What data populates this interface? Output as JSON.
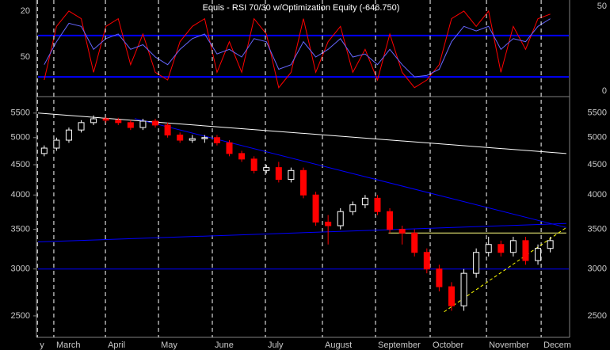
{
  "chart_data": [
    {
      "type": "line",
      "title": "Equis - RSI 70/30 w/Optimization Equity (-646.750)",
      "xlim": [
        -0.5,
        42.5
      ],
      "ylim": [
        74.8,
        12.8
      ],
      "yticks": [
        20,
        50
      ],
      "y2lim": [
        -2.3,
        53.7
      ],
      "y2ticks": [
        0,
        50
      ],
      "hlines": [
        36,
        63
      ],
      "hline_color": "#0000ff",
      "series": [
        {
          "color": "#ff0000",
          "values": [
            65,
            30,
            20,
            25,
            60,
            30,
            25,
            55,
            35,
            60,
            65,
            40,
            30,
            25,
            60,
            40,
            60,
            25,
            35,
            70,
            60,
            25,
            60,
            40,
            30,
            60,
            45,
            65,
            35,
            60,
            70,
            65,
            55,
            25,
            20,
            30,
            20,
            60,
            30,
            45,
            25,
            22
          ]
        },
        {
          "color": "#6666ff",
          "values": [
            55,
            40,
            28,
            30,
            45,
            38,
            35,
            45,
            42,
            50,
            55,
            45,
            38,
            35,
            48,
            45,
            50,
            38,
            40,
            58,
            55,
            40,
            50,
            45,
            38,
            50,
            48,
            55,
            45,
            55,
            63,
            62,
            58,
            40,
            30,
            33,
            30,
            45,
            38,
            40,
            30,
            25
          ]
        }
      ]
    },
    {
      "type": "candlestick",
      "xlim": [
        -0.5,
        42.5
      ],
      "xticks": [
        {
          "value": -0.55,
          "label": "y"
        },
        {
          "value": 0.78,
          "label": "March"
        },
        {
          "value": 4.96,
          "label": "April"
        },
        {
          "value": 9.26,
          "label": "May"
        },
        {
          "value": 13.62,
          "label": "June"
        },
        {
          "value": 17.92,
          "label": "July"
        },
        {
          "value": 22.54,
          "label": "August"
        },
        {
          "value": 26.84,
          "label": "September"
        },
        {
          "value": 31.27,
          "label": "October"
        },
        {
          "value": 35.83,
          "label": "November"
        },
        {
          "value": 40.26,
          "label": "Decem"
        }
      ],
      "ylim": [
        2300,
        5810
      ],
      "log_scale": true,
      "yticks": [
        2500,
        3000,
        3500,
        4000,
        4500,
        5000,
        5500
      ],
      "up_color": "#ffffff",
      "down_color": "#ff0000",
      "open": [
        4700,
        4800,
        4950,
        5150,
        5300,
        5380,
        5350,
        5300,
        5200,
        5330,
        5250,
        5050,
        4950,
        4980,
        5000,
        4900,
        4700,
        4600,
        4400,
        4450,
        4250,
        4400,
        4000,
        3600,
        3550,
        3750,
        3850,
        3950,
        3750,
        3500,
        3450,
        3200,
        3000,
        2800,
        2600,
        2950,
        3200,
        3300,
        3200,
        3350,
        3100,
        3250
      ],
      "high": [
        4850,
        5000,
        5200,
        5350,
        5450,
        5420,
        5400,
        5350,
        5380,
        5380,
        5300,
        5100,
        5050,
        5050,
        5050,
        4950,
        4750,
        4650,
        4500,
        4550,
        4450,
        4450,
        4050,
        3700,
        3800,
        3900,
        4000,
        4000,
        3800,
        3550,
        3500,
        3250,
        3050,
        2850,
        3000,
        3250,
        3400,
        3350,
        3400,
        3400,
        3300,
        3400
      ],
      "low": [
        4650,
        4750,
        4900,
        5100,
        5250,
        5300,
        5250,
        5150,
        5150,
        5200,
        5000,
        4900,
        4900,
        4900,
        4850,
        4650,
        4550,
        4350,
        4350,
        4200,
        4200,
        3950,
        3550,
        3300,
        3500,
        3700,
        3800,
        3700,
        3450,
        3300,
        3150,
        2950,
        2750,
        2550,
        2550,
        2900,
        3150,
        3150,
        3150,
        3050,
        3050,
        3200
      ],
      "close": [
        4800,
        4950,
        5150,
        5300,
        5380,
        5350,
        5300,
        5200,
        5330,
        5250,
        5050,
        4950,
        4980,
        5000,
        4900,
        4700,
        4600,
        4400,
        4450,
        4250,
        4400,
        4000,
        3600,
        3550,
        3750,
        3850,
        3950,
        3750,
        3500,
        3450,
        3200,
        3000,
        2800,
        2600,
        2950,
        3200,
        3300,
        3200,
        3350,
        3100,
        3250,
        3350
      ],
      "hlines": [
        3000
      ],
      "hline_color": "#0000ff",
      "lines": [
        {
          "x": [
            -0.5,
            42.3
          ],
          "y": [
            5500,
            4700
          ],
          "color": "#ffffff",
          "dashed": false
        },
        {
          "x": [
            7.33,
            42.3
          ],
          "y": [
            5385,
            3525
          ],
          "color": "#0000ff",
          "dashed": false
        },
        {
          "x": [
            -0.5,
            42.3
          ],
          "y": [
            3333,
            3580
          ],
          "color": "#0000ff",
          "dashed": false
        },
        {
          "x": [
            27.9,
            42.3
          ],
          "y": [
            3450,
            3450
          ],
          "color": "#ffff80",
          "dashed": false
        },
        {
          "x": [
            32.4,
            42.3
          ],
          "y": [
            2540,
            3525
          ],
          "color": "#ffff00",
          "dashed": true
        }
      ]
    }
  ]
}
